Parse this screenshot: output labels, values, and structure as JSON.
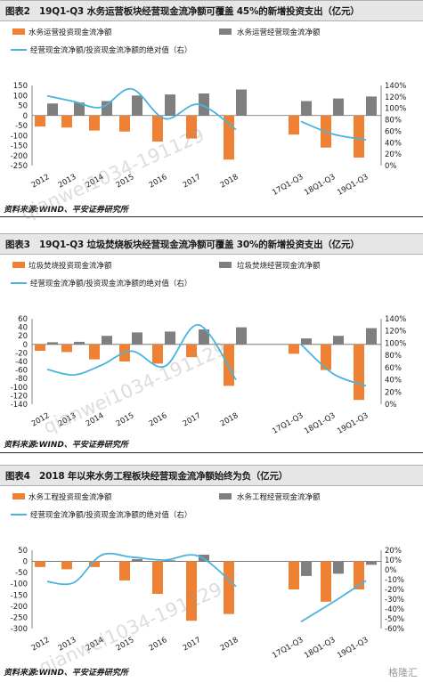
{
  "colors": {
    "bar_a": "#ee8133",
    "bar_b": "#7f7f7f",
    "line": "#4ab4dd"
  },
  "watermark": {
    "text": "qianwei1034-191129",
    "logo_text": "格隆汇"
  },
  "figures": [
    {
      "title": "图表2　19Q1-Q3 水务运营板块经营现金流净额可覆盖 45%的新增投资支出（亿元）",
      "source": "资料来源:WIND、平安证券研究所",
      "legend": {
        "a": "水务运营投资现金流净额",
        "b": "水务运营经营现金流净额",
        "line": "经营现金流净额/投资现金流净额的绝对值（右）"
      }
    },
    {
      "title": "图表3　19Q1-Q3 垃圾焚烧板块经营现金流净额可覆盖 30%的新增投资支出（亿元）",
      "source": "资料来源:WIND、平安证券研究所",
      "legend": {
        "a": "垃圾焚烧投资现金流净额",
        "b": "垃圾焚烧经营现金流净额",
        "line": "经营现金流净额/投资现金流净额的绝对值（右）"
      }
    },
    {
      "title": "图表4　2018 年以来水务工程板块经营现金流净额始终为负（亿元）",
      "source": "资料来源:WIND、平安证券研究所",
      "legend": {
        "a": "水务工程投资现金流净额",
        "b": "水务工程经营现金流净额",
        "line": "经营现金流净额/投资现金流净额的绝对值（右）"
      }
    }
  ],
  "chart_data": [
    {
      "type": "bar",
      "categories": [
        "2012",
        "2013",
        "2014",
        "2015",
        "2016",
        "2017",
        "2018",
        "17Q1-Q3",
        "18Q1-Q3",
        "19Q1-Q3"
      ],
      "series": [
        {
          "name": "水务运营投资现金流净额",
          "type": "bar",
          "values": [
            -55,
            -60,
            -75,
            -80,
            -130,
            -115,
            -220,
            -95,
            -160,
            -210
          ]
        },
        {
          "name": "水务运营经营现金流净额",
          "type": "bar",
          "values": [
            60,
            65,
            72,
            100,
            105,
            110,
            130,
            72,
            85,
            95
          ]
        },
        {
          "name": "经营现金流净额/投资现金流净额的绝对值（右）",
          "type": "line",
          "axis": "right",
          "values": [
            122,
            112,
            102,
            134,
            82,
            107,
            63,
            77,
            55,
            45
          ]
        }
      ],
      "y_left": {
        "min": -250,
        "max": 150,
        "ticks": [
          150,
          100,
          50,
          0,
          -50,
          -100,
          -150,
          -200,
          -250
        ]
      },
      "y_right": {
        "min": 0,
        "max": 140,
        "ticks": [
          "140%",
          "120%",
          "100%",
          "80%",
          "60%",
          "40%",
          "20%",
          "0%"
        ]
      }
    },
    {
      "type": "bar",
      "categories": [
        "2012",
        "2013",
        "2014",
        "2015",
        "2016",
        "2017",
        "2018",
        "17Q1-Q3",
        "18Q1-Q3",
        "19Q1-Q3"
      ],
      "series": [
        {
          "name": "垃圾焚烧投资现金流净额",
          "type": "bar",
          "values": [
            -15,
            -18,
            -35,
            -40,
            -45,
            -30,
            -97,
            -22,
            -60,
            -130
          ]
        },
        {
          "name": "垃圾焚烧经营现金流净额",
          "type": "bar",
          "values": [
            5,
            6,
            20,
            28,
            30,
            35,
            40,
            14,
            20,
            38
          ]
        },
        {
          "name": "经营现金流净额/投资现金流净额的绝对值（右）",
          "type": "line",
          "axis": "right",
          "values": [
            57,
            48,
            64,
            87,
            62,
            130,
            40,
            98,
            50,
            30
          ]
        }
      ],
      "y_left": {
        "min": -140,
        "max": 60,
        "ticks": [
          60,
          40,
          20,
          0,
          -20,
          -40,
          -60,
          -80,
          -100,
          -120,
          -140
        ]
      },
      "y_right": {
        "min": 0,
        "max": 140,
        "ticks": [
          "140%",
          "120%",
          "100%",
          "80%",
          "60%",
          "40%",
          "20%",
          "0%"
        ]
      }
    },
    {
      "type": "bar",
      "categories": [
        "2012",
        "2013",
        "2014",
        "2015",
        "2016",
        "2017",
        "2018",
        "17Q1-Q3",
        "18Q1-Q3",
        "19Q1-Q3"
      ],
      "series": [
        {
          "name": "水务工程投资现金流净额",
          "type": "bar",
          "values": [
            -25,
            -35,
            -25,
            -85,
            -145,
            -265,
            -235,
            -125,
            -180,
            -125
          ]
        },
        {
          "name": "水务工程经营现金流净额",
          "type": "bar",
          "values": [
            0,
            0,
            0,
            10,
            5,
            30,
            0,
            -65,
            -55,
            -15
          ]
        },
        {
          "name": "经营现金流净额/投资现金流净额的绝对值（右）",
          "type": "line",
          "axis": "right",
          "values": [
            -12,
            -13,
            15,
            13,
            10,
            14,
            -17,
            -53,
            -33,
            -11
          ]
        }
      ],
      "y_left": {
        "min": -300,
        "max": 50,
        "ticks": [
          50,
          0,
          -50,
          -100,
          -150,
          -200,
          -250,
          -300
        ]
      },
      "y_right": {
        "min": -60,
        "max": 20,
        "ticks": [
          "20%",
          "10%",
          "0%",
          "-10%",
          "-20%",
          "-30%",
          "-40%",
          "-50%",
          "-60%"
        ]
      }
    }
  ]
}
